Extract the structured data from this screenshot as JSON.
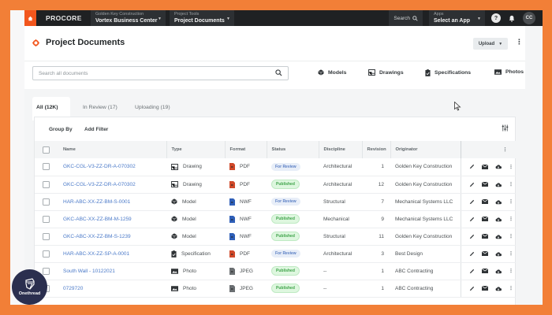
{
  "topnav": {
    "logo": "PROCORE",
    "company": {
      "label": "Golden Key Construction",
      "value": "Vortex Business Center"
    },
    "tool": {
      "label": "Project Tools",
      "value": "Project Documents"
    },
    "search_label": "Search",
    "apps": {
      "label": "Apps",
      "value": "Select an App"
    },
    "avatar_initials": "CC"
  },
  "header": {
    "title": "Project Documents",
    "upload_label": "Upload"
  },
  "search": {
    "placeholder": "Search all documents"
  },
  "quick_links": [
    {
      "label": "Models",
      "icon": "model-icon"
    },
    {
      "label": "Drawings",
      "icon": "drawing-icon"
    },
    {
      "label": "Specifications",
      "icon": "specification-icon"
    },
    {
      "label": "Photos",
      "icon": "photo-icon"
    }
  ],
  "tabs": [
    {
      "label": "All (12K)",
      "active": true
    },
    {
      "label": "In Review (17)",
      "active": false
    },
    {
      "label": "Uploading (19)",
      "active": false
    }
  ],
  "toolbar": {
    "group_by": "Group By",
    "add_filter": "Add Filter"
  },
  "table": {
    "columns": [
      "Name",
      "Type",
      "Format",
      "Status",
      "Discipline",
      "Revision",
      "Originator"
    ],
    "rows": [
      {
        "name": "GKC-CGL-V3-ZZ-DR-A-070302",
        "type": "Drawing",
        "format": "PDF",
        "status": "For Review",
        "discipline": "Architectural",
        "revision": "1",
        "originator": "Golden Key Construction"
      },
      {
        "name": "GKC-CGL-V3-ZZ-DR-A-070302",
        "type": "Drawing",
        "format": "PDF",
        "status": "Published",
        "discipline": "Architectural",
        "revision": "12",
        "originator": "Golden Key Construction"
      },
      {
        "name": "HAR-ABC-XX-ZZ-BM-S-0001",
        "type": "Model",
        "format": "NWF",
        "status": "For Review",
        "discipline": "Structural",
        "revision": "7",
        "originator": "Mechanical Systems LLC"
      },
      {
        "name": "GKC-ABC-XX-ZZ-BM-M-1259",
        "type": "Model",
        "format": "NWF",
        "status": "Published",
        "discipline": "Mechanical",
        "revision": "9",
        "originator": "Mechanical Systems LLC"
      },
      {
        "name": "GKC-ABC-XX-ZZ-BM-S-1239",
        "type": "Model",
        "format": "NWF",
        "status": "Published",
        "discipline": "Structural",
        "revision": "11",
        "originator": "Golden Key Construction"
      },
      {
        "name": "HAR-ABC-XX-ZZ-SP-A-0001",
        "type": "Specification",
        "format": "PDF",
        "status": "For Review",
        "discipline": "Architectural",
        "revision": "3",
        "originator": "Best Design"
      },
      {
        "name": "South Wall - 10122021",
        "type": "Photo",
        "format": "JPEG",
        "status": "Published",
        "discipline": "--",
        "revision": "1",
        "originator": "ABC Contracting"
      },
      {
        "name": "0729720",
        "type": "Photo",
        "format": "JPEG",
        "status": "Published",
        "discipline": "--",
        "revision": "1",
        "originator": "ABC Contracting"
      }
    ]
  },
  "watermark": {
    "label": "Onethread"
  },
  "colors": {
    "frame_orange": "#f27f37",
    "procore_orange": "#f2561d",
    "nav_dark": "#1f2123",
    "link_blue": "#4a79c8",
    "pdf_red": "#d0492a",
    "nwf_blue": "#2f5fb8",
    "jpeg_gray": "#6b6f72"
  }
}
